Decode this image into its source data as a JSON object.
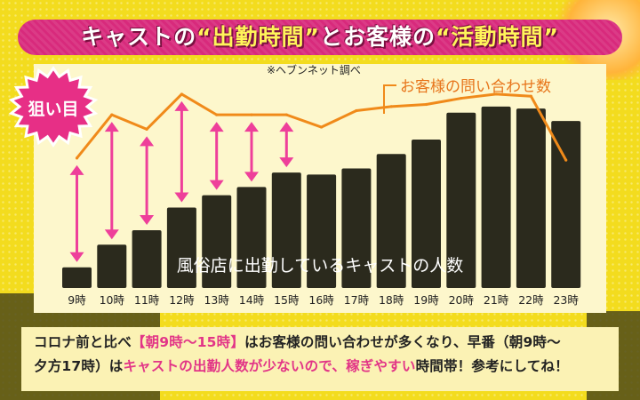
{
  "header": {
    "title_prefix": "キャストの",
    "title_q1": "“出勤時間”",
    "title_mid": "とお客様の",
    "title_q2": "“活動時間”"
  },
  "badge": {
    "label": "狙い目"
  },
  "source_note": "※ヘブンネット調べ",
  "chart_data": {
    "type": "bar",
    "categories": [
      "9時",
      "10時",
      "11時",
      "12時",
      "13時",
      "14時",
      "15時",
      "16時",
      "17時",
      "18時",
      "19時",
      "20時",
      "21時",
      "22時",
      "23時"
    ],
    "series": [
      {
        "name": "風俗店に出勤しているキャストの人数",
        "kind": "bar",
        "values": [
          10,
          21,
          28,
          39,
          45,
          49,
          56,
          55,
          58,
          65,
          72,
          85,
          88,
          87,
          81
        ]
      },
      {
        "name": "お客様の問い合わせ数",
        "kind": "line",
        "values": [
          63,
          84,
          77,
          94,
          84,
          84,
          84,
          78,
          86,
          88,
          89,
          92,
          94,
          93,
          62
        ]
      }
    ],
    "ylim": [
      0,
      100
    ],
    "grid": false,
    "highlight_range": [
      "9時",
      "15時"
    ],
    "colors": {
      "bar": "#2b2a1d",
      "line": "#f08a1a",
      "arrow": "#ee3f9a"
    }
  },
  "footer": {
    "line1_a": "コロナ前と比べ",
    "line1_b": "【朝9時〜15時】",
    "line1_c": "はお客様の問い合わせが多くなり、早番（朝9時〜",
    "line2_a": "夕方17時）は",
    "line2_b": "キャストの出勤人数が少ないので、稼ぎやすい",
    "line2_c": "時間帯！参考にしてね！"
  }
}
